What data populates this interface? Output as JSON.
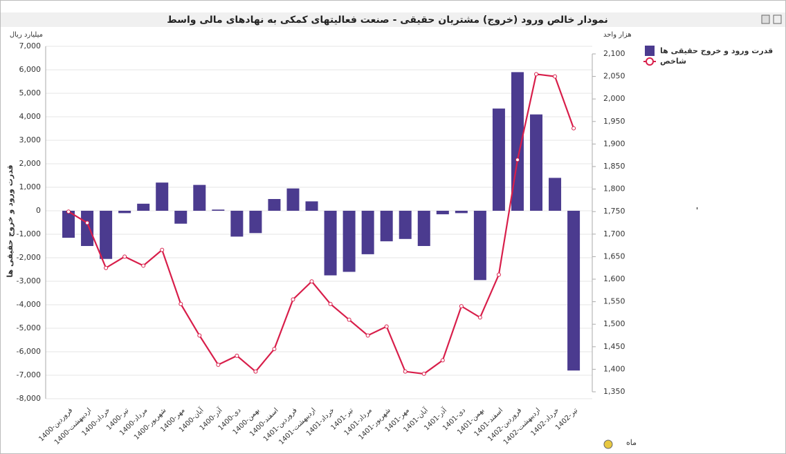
{
  "chart_data": {
    "type": "bar-line",
    "title": "نمودار خالص ورود (خروج) مشتریان حقیقی - صنعت فعالیتهای کمکی به نهادهای مالی واسط",
    "y_unit": "میلیارد ریال",
    "y2_unit": "هزار واحد",
    "y_label": "قدرت ورود و خروج حقیقی ها",
    "x_label": "ماه",
    "categories": [
      "1400-فروردین",
      "1400-اردیبهشت",
      "1400-خرداد",
      "1400-تیر",
      "1400-مرداد",
      "1400-شهریور",
      "1400-مهر",
      "1400-آبان",
      "1400-آذر",
      "1400-دی",
      "1400-بهمن",
      "1400-اسفند",
      "1401-فروردین",
      "1401-اردیبهشت",
      "1401-خرداد",
      "1401-تیر",
      "1401-مرداد",
      "1401-شهریور",
      "1401-مهر",
      "1401-آبان",
      "1401-آذر",
      "1401-دی",
      "1401-بهمن",
      "1401-اسفند",
      "1402-فروردین",
      "1402-اردیبهشت",
      "1402-خرداد",
      "1402-تیر"
    ],
    "series": [
      {
        "name": "قدرت ورود و خروج حقیقی ها",
        "type": "bar",
        "color": "#4b3b8f",
        "values": [
          -1150,
          -1500,
          -2050,
          -100,
          300,
          1200,
          -550,
          1100,
          50,
          -1100,
          -950,
          500,
          950,
          400,
          -2750,
          -2600,
          -1850,
          -1300,
          -1200,
          -1500,
          -150,
          -100,
          -2950,
          4350,
          5900,
          4100,
          1400,
          -6800
        ]
      },
      {
        "name": "شاخص",
        "type": "line",
        "axis": "y2",
        "color": "#d81e4a",
        "values": [
          1750,
          1725,
          1625,
          1650,
          1630,
          1665,
          1545,
          1475,
          1410,
          1430,
          1395,
          1445,
          1555,
          1595,
          1545,
          1510,
          1475,
          1495,
          1395,
          1390,
          1420,
          1540,
          1515,
          1610,
          1865,
          2055,
          2050,
          1935
        ]
      }
    ],
    "ylim": [
      -8000,
      7000
    ],
    "yticks": [
      {
        "value": -8000,
        "label": "-8,000"
      },
      {
        "value": -7000,
        "label": "-7,000"
      },
      {
        "value": -6000,
        "label": "-6,000"
      },
      {
        "value": -5000,
        "label": "-5,000"
      },
      {
        "value": -4000,
        "label": "-4,000"
      },
      {
        "value": -3000,
        "label": "-3,000"
      },
      {
        "value": -2000,
        "label": "-2,000"
      },
      {
        "value": -1000,
        "label": "-1,000"
      },
      0,
      {
        "value": 1000,
        "label": "1,000"
      },
      {
        "value": 2000,
        "label": "2,000"
      },
      {
        "value": 3000,
        "label": "3,000"
      },
      {
        "value": 4000,
        "label": "4,000"
      },
      {
        "value": 5000,
        "label": "5,000"
      },
      {
        "value": 6000,
        "label": "6,000"
      },
      {
        "value": 7000,
        "label": "7,000"
      }
    ],
    "y2lim": [
      1350,
      2100
    ],
    "y2ticks": [
      {
        "value": 1350,
        "label": "1,350"
      },
      {
        "value": 1400,
        "label": "1,400"
      },
      {
        "value": 1450,
        "label": "1,450"
      },
      {
        "value": 1500,
        "label": "1,500"
      },
      {
        "value": 1550,
        "label": "1,550"
      },
      {
        "value": 1600,
        "label": "1,600"
      },
      {
        "value": 1650,
        "label": "1,650"
      },
      {
        "value": 1700,
        "label": "1,700"
      },
      {
        "value": 1750,
        "label": "1,750"
      },
      {
        "value": 1800,
        "label": "1,800"
      },
      {
        "value": 1850,
        "label": "1,850"
      },
      {
        "value": 1900,
        "label": "1,900"
      },
      {
        "value": 1950,
        "label": "1,950"
      },
      {
        "value": 2000,
        "label": "2,000"
      },
      {
        "value": 2050,
        "label": "2,050"
      },
      {
        "value": 2100,
        "label": "2,100"
      }
    ],
    "grid": true
  }
}
